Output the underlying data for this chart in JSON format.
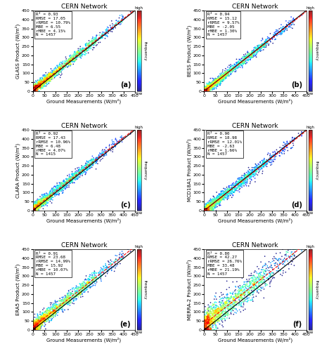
{
  "panels": [
    {
      "label": "(a)",
      "title": "CERN Network",
      "ylabel": "GLASS Product (W/m²)",
      "xlabel": "Ground Measurements (W/m²)",
      "R2": 0.93,
      "RMSE": 17.05,
      "rRMSE": 10.79,
      "MBE": 6.55,
      "rMBE": 4.15,
      "N": 1457,
      "xlim": [
        0,
        450
      ],
      "ylim": [
        0,
        450
      ]
    },
    {
      "label": "(b)",
      "title": "CERN Network",
      "ylabel": "BESS Product (W/m²)",
      "xlabel": "Ground Measurements (W/m²)",
      "R2": 0.94,
      "RMSE": 15.12,
      "rRMSE": 9.57,
      "MBE": -2.05,
      "rMBE": 1.3,
      "N": 1457,
      "xlim": [
        0,
        450
      ],
      "ylim": [
        0,
        450
      ]
    },
    {
      "label": "(c)",
      "title": "CERN Network",
      "ylabel": "CLARA Product (W/m²)",
      "xlabel": "Ground Measurements (W/m²)",
      "R2": 0.92,
      "RMSE": 17.43,
      "rRMSE": 10.96,
      "MBE": 6.48,
      "rMBE": 4.07,
      "N": 1415,
      "xlim": [
        0,
        450
      ],
      "ylim": [
        0,
        450
      ]
    },
    {
      "label": "(d)",
      "title": "CERN Network",
      "ylabel": "MCD18A1 Product (W/m²)",
      "xlabel": "Ground Measurements (W/m²)",
      "R2": 0.9,
      "RMSE": 18.98,
      "rRMSE": 12.01,
      "MBE": -2.63,
      "rMBE": 1.66,
      "N": 1457,
      "xlim": [
        0,
        450
      ],
      "ylim": [
        0,
        450
      ]
    },
    {
      "label": "(e)",
      "title": "CERN Network",
      "ylabel": "ERA5 Product (W/m²)",
      "xlabel": "Ground Measurements (W/m²)",
      "R2": 0.91,
      "RMSE": 23.68,
      "rRMSE": 14.99,
      "MBE": 15.92,
      "rMBE": 10.07,
      "N": 1457,
      "xlim": [
        0,
        450
      ],
      "ylim": [
        0,
        450
      ]
    },
    {
      "label": "(f)",
      "title": "CERN Network",
      "ylabel": "MERRA-2 Product (W/m²)",
      "xlabel": "Ground Measurements (W/m²)",
      "R2": 0.8,
      "RMSE": 42.27,
      "rRMSE": 26.76,
      "MBE": 33.48,
      "rMBE": 21.19,
      "N": 1457,
      "xlim": [
        0,
        450
      ],
      "ylim": [
        0,
        450
      ]
    }
  ],
  "background_color": "#ffffff"
}
